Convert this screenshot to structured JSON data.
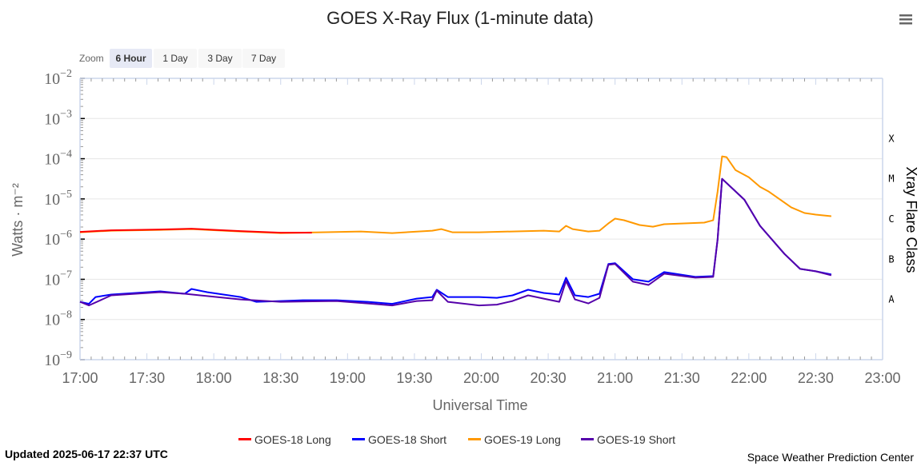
{
  "menu_icon": "hamburger-menu-icon",
  "zoom": {
    "label": "Zoom",
    "buttons": [
      "6 Hour",
      "1 Day",
      "3 Day",
      "7 Day"
    ],
    "selected": "6 Hour"
  },
  "updated": "Updated 2025-06-17 22:37 UTC",
  "credit": "Space Weather Prediction Center",
  "chart_data": {
    "type": "line",
    "title": "GOES X-Ray Flux (1-minute data)",
    "xlabel": "Universal Time",
    "ylabel": "Watts · m⁻²",
    "y2label": "Xray Flare Class",
    "yscale": "log",
    "ylim_log10": [
      -9,
      -2
    ],
    "ytick_labels": [
      {
        "base": "10",
        "exp": "−2"
      },
      {
        "base": "10",
        "exp": "−3"
      },
      {
        "base": "10",
        "exp": "−4"
      },
      {
        "base": "10",
        "exp": "−5"
      },
      {
        "base": "10",
        "exp": "−6"
      },
      {
        "base": "10",
        "exp": "−7"
      },
      {
        "base": "10",
        "exp": "−8"
      },
      {
        "base": "10",
        "exp": "−9"
      }
    ],
    "xlim_minutes_since_1700": [
      0,
      360
    ],
    "xtick_labels": [
      "17:00",
      "17:30",
      "18:00",
      "18:30",
      "19:00",
      "19:30",
      "20:00",
      "20:30",
      "21:00",
      "21:30",
      "22:00",
      "22:30",
      "23:00"
    ],
    "flare_classes": [
      {
        "label": "X",
        "log10": -3.5
      },
      {
        "label": "M",
        "log10": -4.5
      },
      {
        "label": "C",
        "log10": -5.5
      },
      {
        "label": "B",
        "log10": -6.5
      },
      {
        "label": "A",
        "log10": -7.5
      }
    ],
    "grid": true,
    "legend_position": "bottom-center",
    "x_units": "minutes since 17:00 UTC",
    "y_units": "log10 W/m2",
    "series": [
      {
        "name": "GOES-19 Long",
        "color": "#ff9900",
        "x": [
          0,
          14,
          36,
          50,
          72,
          90,
          108,
          126,
          140,
          158,
          162,
          167,
          179,
          208,
          215,
          218,
          221,
          228,
          233,
          237,
          240,
          244,
          251,
          257,
          262,
          280,
          284,
          286,
          288,
          290,
          294,
          300,
          305,
          309,
          319,
          325,
          330,
          337
        ],
        "y": [
          -5.83,
          -5.79,
          -5.77,
          -5.75,
          -5.81,
          -5.85,
          -5.83,
          -5.81,
          -5.85,
          -5.79,
          -5.75,
          -5.83,
          -5.83,
          -5.79,
          -5.81,
          -5.67,
          -5.75,
          -5.81,
          -5.79,
          -5.61,
          -5.49,
          -5.53,
          -5.65,
          -5.69,
          -5.63,
          -5.59,
          -5.53,
          -4.82,
          -3.94,
          -3.96,
          -4.28,
          -4.46,
          -4.7,
          -4.82,
          -5.21,
          -5.35,
          -5.39,
          -5.43
        ]
      },
      {
        "name": "GOES-18 Long",
        "color": "#ff0000",
        "x": [
          0,
          14,
          36,
          50,
          72,
          90,
          104
        ],
        "y": [
          -5.82,
          -5.78,
          -5.76,
          -5.74,
          -5.8,
          -5.84,
          -5.84
        ]
      },
      {
        "name": "GOES-18 Short",
        "color": "#0000ff",
        "x": [
          0,
          4,
          7,
          14,
          25,
          36,
          47,
          50,
          57,
          72,
          79,
          90,
          100,
          115,
          129,
          140,
          151,
          158,
          160,
          165,
          179,
          187,
          194,
          201,
          208,
          215,
          218,
          222,
          228,
          233,
          237,
          240,
          248,
          255,
          262,
          276,
          284,
          286,
          288,
          298,
          305,
          316,
          323,
          330,
          337
        ],
        "y": [
          -7.56,
          -7.61,
          -7.44,
          -7.38,
          -7.34,
          -7.3,
          -7.36,
          -7.24,
          -7.32,
          -7.44,
          -7.56,
          -7.54,
          -7.52,
          -7.52,
          -7.56,
          -7.61,
          -7.48,
          -7.44,
          -7.26,
          -7.44,
          -7.44,
          -7.46,
          -7.4,
          -7.26,
          -7.34,
          -7.38,
          -6.96,
          -7.4,
          -7.44,
          -7.36,
          -6.62,
          -6.6,
          -7.0,
          -7.06,
          -6.82,
          -6.94,
          -6.92,
          -6.01,
          -4.5,
          -5.02,
          -5.67,
          -6.37,
          -6.74,
          -6.8,
          -6.88
        ]
      },
      {
        "name": "GOES-19 Short",
        "color": "#5500aa",
        "x": [
          0,
          4,
          14,
          36,
          47,
          72,
          90,
          115,
          129,
          140,
          151,
          158,
          160,
          165,
          179,
          187,
          194,
          201,
          208,
          215,
          218,
          222,
          228,
          233,
          237,
          240,
          248,
          255,
          262,
          276,
          284,
          286,
          288,
          298,
          305,
          316,
          323,
          330,
          337
        ],
        "y": [
          -7.56,
          -7.65,
          -7.4,
          -7.32,
          -7.36,
          -7.5,
          -7.56,
          -7.54,
          -7.6,
          -7.65,
          -7.54,
          -7.52,
          -7.28,
          -7.56,
          -7.65,
          -7.63,
          -7.54,
          -7.4,
          -7.48,
          -7.56,
          -7.04,
          -7.5,
          -7.6,
          -7.46,
          -6.64,
          -6.62,
          -7.06,
          -7.14,
          -6.86,
          -6.96,
          -6.94,
          -6.01,
          -4.5,
          -5.02,
          -5.67,
          -6.37,
          -6.74,
          -6.8,
          -6.9
        ]
      }
    ],
    "legend_order": [
      "GOES-18 Long",
      "GOES-18 Short",
      "GOES-19 Long",
      "GOES-19 Short"
    ]
  }
}
